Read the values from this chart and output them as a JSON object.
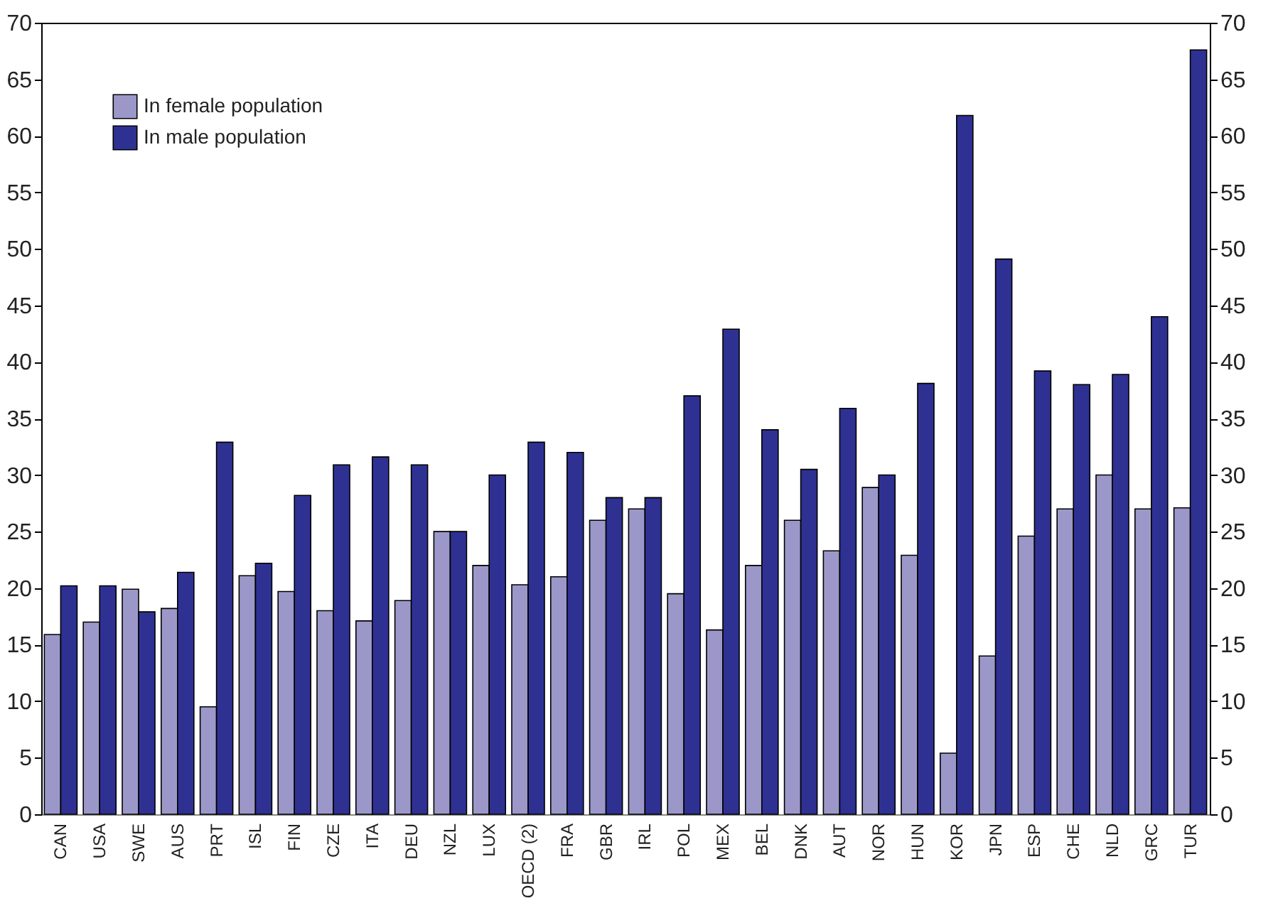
{
  "chart_data": {
    "type": "bar",
    "categories": [
      "CAN",
      "USA",
      "SWE",
      "AUS",
      "PRT",
      "ISL",
      "FIN",
      "CZE",
      "ITA",
      "DEU",
      "NZL",
      "LUX",
      "OECD (2)",
      "FRA",
      "GBR",
      "IRL",
      "POL",
      "MEX",
      "BEL",
      "DNK",
      "AUT",
      "NOR",
      "HUN",
      "KOR",
      "JPN",
      "ESP",
      "CHE",
      "NLD",
      "GRC",
      "TUR"
    ],
    "series": [
      {
        "name": "In female population",
        "color": "#9b98c9",
        "values": [
          15.9,
          17,
          19.9,
          18.2,
          9.5,
          21.1,
          19.7,
          18,
          17.1,
          18.9,
          25,
          22,
          20.3,
          21,
          26,
          27,
          19.5,
          16.3,
          22,
          26,
          23.3,
          28.9,
          22.9,
          5.4,
          14,
          24.6,
          27,
          30,
          27,
          27.1
        ]
      },
      {
        "name": "In male population",
        "color": "#2e3192",
        "values": [
          20.2,
          20.2,
          17.9,
          21.4,
          32.9,
          22.2,
          28.2,
          30.9,
          31.6,
          30.9,
          25,
          30,
          32.9,
          32,
          28,
          28,
          37,
          42.9,
          34,
          30.5,
          35.9,
          30,
          38.1,
          61.8,
          49.1,
          39.2,
          38,
          38.9,
          44,
          67.6
        ]
      }
    ],
    "ylim": [
      0,
      70
    ],
    "yticks": [
      0,
      5,
      10,
      15,
      20,
      25,
      30,
      35,
      40,
      45,
      50,
      55,
      60,
      65,
      70
    ],
    "y2lim": [
      0,
      70
    ],
    "y2ticks": [
      0,
      5,
      10,
      15,
      20,
      25,
      30,
      35,
      40,
      45,
      50,
      55,
      60,
      65,
      70
    ],
    "legend": "top left",
    "grid": false
  }
}
